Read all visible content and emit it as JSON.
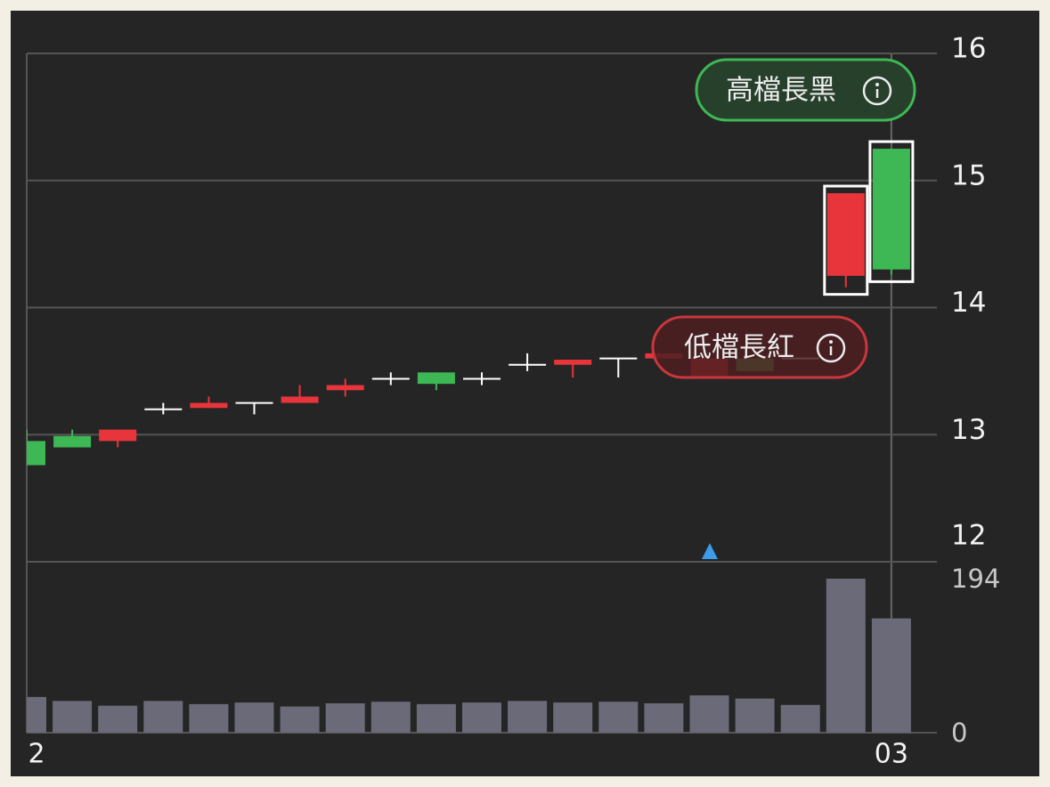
{
  "chart_data": {
    "type": "candlestick",
    "categories": [
      "2",
      null,
      null,
      null,
      null,
      null,
      null,
      null,
      null,
      null,
      null,
      null,
      null,
      null,
      null,
      null,
      null,
      null,
      null,
      "03"
    ],
    "open": [
      12.95,
      12.99,
      12.95,
      13.2,
      13.21,
      13.25,
      13.25,
      13.35,
      13.44,
      13.49,
      13.44,
      13.55,
      13.55,
      13.6,
      13.6,
      13.45,
      13.6,
      13.6,
      14.25,
      15.25
    ],
    "high": [
      13.04,
      13.04,
      13.04,
      13.25,
      13.3,
      13.25,
      13.39,
      13.44,
      13.49,
      13.49,
      13.49,
      13.64,
      13.59,
      13.6,
      13.64,
      13.6,
      13.6,
      13.6,
      14.9,
      15.25
    ],
    "low": [
      12.76,
      12.9,
      12.9,
      13.16,
      13.21,
      13.16,
      13.25,
      13.3,
      13.39,
      13.35,
      13.39,
      13.5,
      13.45,
      13.45,
      13.6,
      13.45,
      13.5,
      13.6,
      14.16,
      14.26
    ],
    "close": [
      12.76,
      12.9,
      13.04,
      13.2,
      13.25,
      13.25,
      13.3,
      13.39,
      13.44,
      13.4,
      13.44,
      13.55,
      13.59,
      13.6,
      13.64,
      13.6,
      13.5,
      13.6,
      14.9,
      14.3
    ],
    "up_color": "#e8353b",
    "down_color": "#3db854",
    "flat_color": "#ffffff",
    "ylim": [
      12,
      16
    ],
    "yticks": [
      12,
      13,
      14,
      15,
      16
    ],
    "volume": [
      45,
      40,
      34,
      40,
      36,
      38,
      33,
      37,
      39,
      36,
      38,
      40,
      38,
      39,
      37,
      47,
      43,
      35,
      194,
      144
    ],
    "volume_color": "#6b6a78",
    "volume_ylim": [
      0,
      194
    ],
    "volume_ticks": [
      0,
      194
    ],
    "annotations": [
      "高檔長黑",
      "低檔長紅"
    ]
  }
}
